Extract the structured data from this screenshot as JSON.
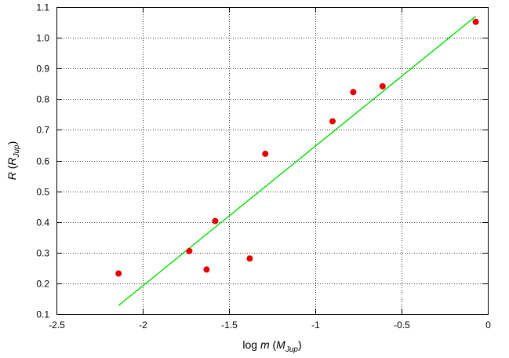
{
  "chart_data": {
    "type": "scatter",
    "title": "",
    "xlabel": {
      "prefix": "log ",
      "var": "m",
      "open": " (",
      "unit": "M",
      "unit_sub": "Jup",
      "close": ")"
    },
    "ylabel": {
      "var": "R",
      "open": " (",
      "unit": "R",
      "unit_sub": "Jup",
      "close": ")"
    },
    "xlim": [
      -2.5,
      0
    ],
    "ylim": [
      0.1,
      1.1
    ],
    "x_ticks": [
      -2.5,
      -2,
      -1.5,
      -1,
      -0.5,
      0
    ],
    "x_tick_labels": [
      "-2.5",
      "-2",
      "-1.5",
      "-1",
      "-0.5",
      "0"
    ],
    "y_ticks": [
      0.1,
      0.2,
      0.3,
      0.4,
      0.5,
      0.6,
      0.7,
      0.8,
      0.9,
      1.0,
      1.1
    ],
    "y_tick_labels": [
      "0.1",
      "0.2",
      "0.3",
      "0.4",
      "0.5",
      "0.6",
      "0.7",
      "0.8",
      "0.9",
      "1.0",
      "1.1"
    ],
    "grid": true,
    "grid_style": "dotted",
    "series": [
      {
        "kind": "points",
        "color": "#e60000",
        "x": [
          -2.14,
          -1.73,
          -1.63,
          -1.58,
          -1.38,
          -1.29,
          -0.9,
          -0.78,
          -0.61,
          -0.07
        ],
        "y": [
          0.232,
          0.305,
          0.245,
          0.403,
          0.281,
          0.622,
          0.728,
          0.823,
          0.842,
          1.052
        ]
      },
      {
        "kind": "fit-line",
        "color": "#00dd00",
        "x": [
          -2.14,
          -0.07
        ],
        "y": [
          0.128,
          1.07
        ]
      }
    ]
  }
}
